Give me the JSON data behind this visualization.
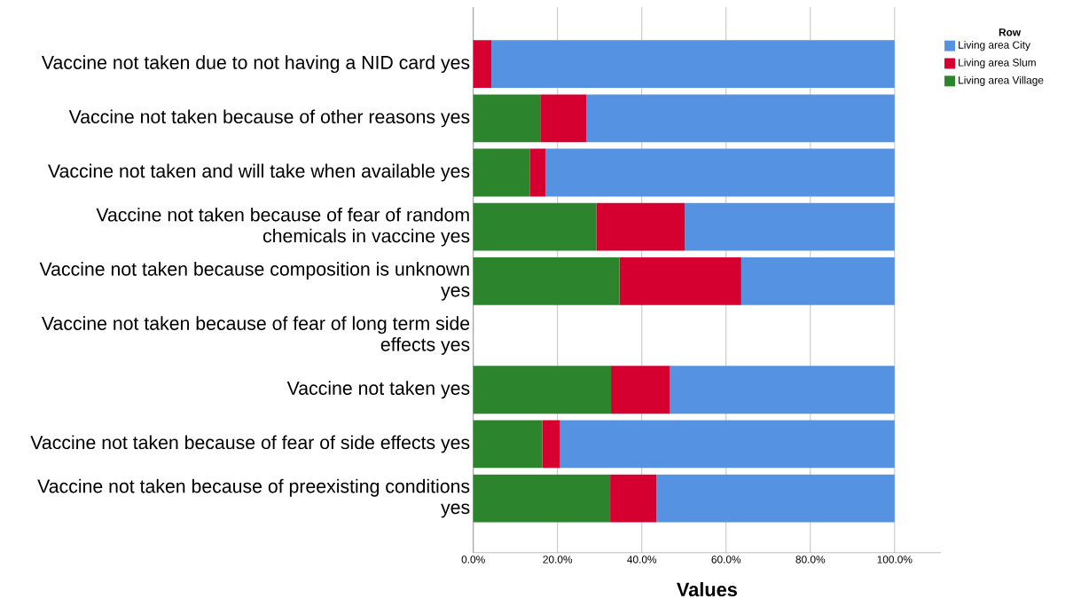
{
  "chart_data": {
    "type": "bar",
    "orientation": "horizontal",
    "stacked": true,
    "xlabel": "Values",
    "legend_title": "Row",
    "legend": "top right",
    "grid": "x",
    "categories": [
      "Vaccine not taken due to not having a NID card yes",
      "Vaccine not taken because of other reasons yes",
      "Vaccine not taken and will take when available yes",
      "Vaccine not taken because of fear of random chemicals in vaccine yes",
      "Vaccine not taken because composition is unknown yes",
      "Vaccine not taken because of fear of long term side effects yes",
      "Vaccine not taken yes",
      "Vaccine not taken because of fear of side effects yes",
      "Vaccine not taken because of preexisting conditions yes"
    ],
    "xlim": [
      0,
      111
    ],
    "xticks": [
      {
        "value": 0,
        "label": "0.0%"
      },
      {
        "value": 20,
        "label": "20.0%"
      },
      {
        "value": 40,
        "label": "40.0%"
      },
      {
        "value": 60,
        "label": "60.0%"
      },
      {
        "value": 80,
        "label": "80.0%"
      },
      {
        "value": 100,
        "label": "100.0%"
      }
    ],
    "series": [
      {
        "name": "Living area Village",
        "color": "#2c852c",
        "values": [
          null,
          15.9,
          13.4,
          29.2,
          34.7,
          null,
          32.7,
          16.4,
          32.5
        ]
      },
      {
        "name": "Living area Slum",
        "color": "#d60030",
        "values": [
          4.3,
          11.0,
          3.8,
          21.0,
          28.9,
          null,
          14.0,
          4.2,
          11.0
        ]
      },
      {
        "name": "Living area City",
        "color": "#5593e2",
        "values": [
          95.7,
          73.1,
          82.8,
          49.8,
          36.4,
          null,
          53.3,
          79.4,
          56.5
        ]
      }
    ]
  }
}
